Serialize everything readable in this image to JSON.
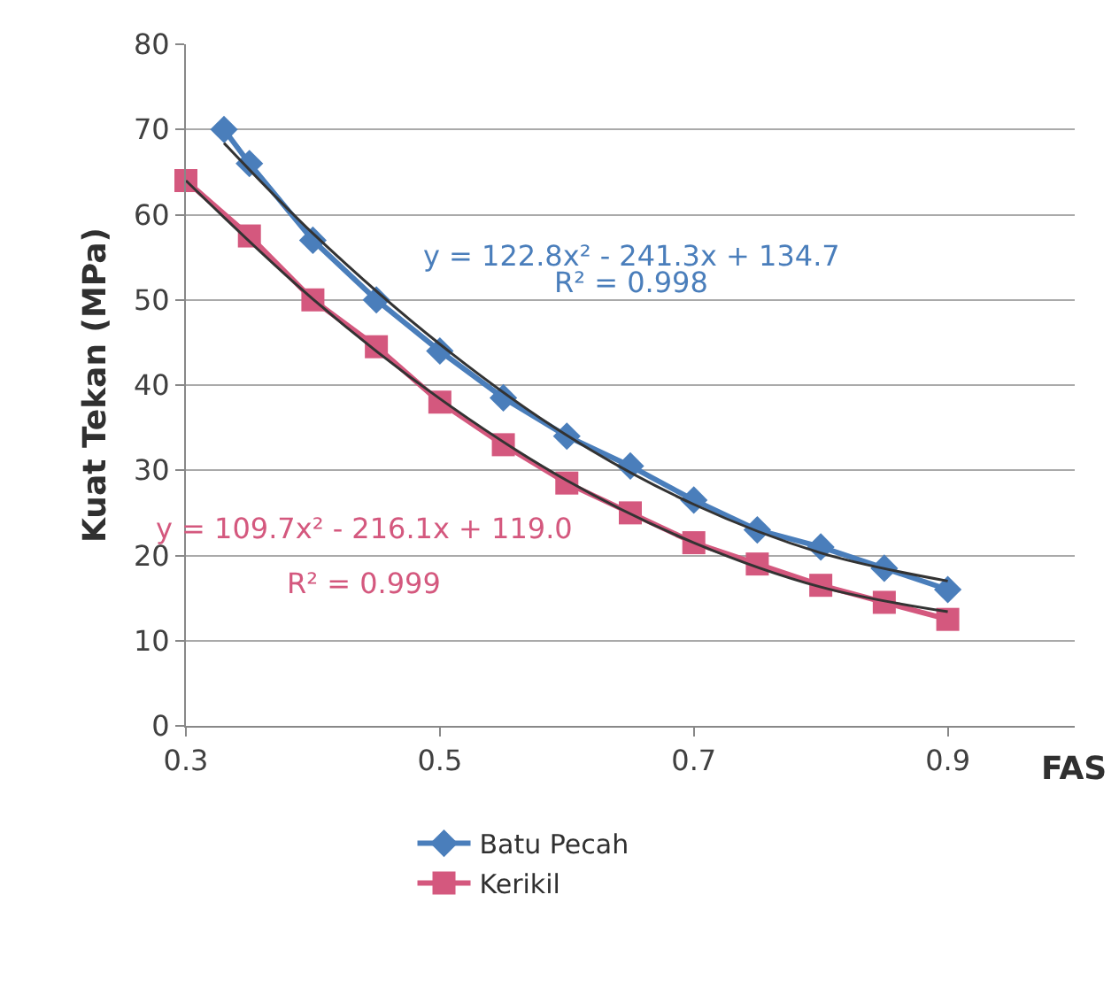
{
  "chart_data": {
    "type": "line",
    "xlabel": "FAS",
    "ylabel": "Kuat Tekan (MPa)",
    "xlim": [
      0.3,
      1.0
    ],
    "xticks": [
      0.3,
      0.5,
      0.7,
      0.9
    ],
    "ylim": [
      0,
      80
    ],
    "yticks": [
      0,
      10,
      20,
      30,
      40,
      50,
      60,
      70,
      80
    ],
    "grid": "y",
    "legend": "bottom",
    "line_style": "solid",
    "series": [
      {
        "name": "Batu Pecah",
        "marker": "diamond",
        "color": "#4a7ebb",
        "x": [
          0.33,
          0.35,
          0.4,
          0.45,
          0.5,
          0.55,
          0.6,
          0.65,
          0.7,
          0.75,
          0.8,
          0.85,
          0.9
        ],
        "values": [
          70,
          66,
          57,
          50,
          44,
          38.5,
          34,
          30.5,
          26.5,
          23,
          21,
          18.5,
          16
        ]
      },
      {
        "name": "Kerikil",
        "marker": "square",
        "color": "#d4587e",
        "x": [
          0.3,
          0.35,
          0.4,
          0.45,
          0.5,
          0.55,
          0.6,
          0.65,
          0.7,
          0.75,
          0.8,
          0.85,
          0.9
        ],
        "values": [
          64,
          57.5,
          50,
          44.5,
          38,
          33,
          28.5,
          25,
          21.5,
          19,
          16.5,
          14.5,
          12.5
        ]
      },
      {
        "marker": "none",
        "color": "#333333",
        "x": [
          0.33,
          0.4,
          0.5,
          0.6,
          0.7,
          0.8,
          0.9
        ],
        "values": [
          68.4,
          57.8,
          44.8,
          34.1,
          26,
          20.3,
          17
        ]
      },
      {
        "marker": "none",
        "color": "#333333",
        "x": [
          0.3,
          0.4,
          0.5,
          0.6,
          0.7,
          0.8,
          0.9
        ],
        "values": [
          64,
          50.1,
          38.4,
          28.8,
          21.5,
          16.3,
          13.4
        ]
      }
    ],
    "annotations": [
      "y = 122.8x² - 241.3x + 134.7",
      "R² = 0.998",
      "y = 109.7x² - 216.1x + 119.0",
      "R² = 0.999"
    ]
  }
}
